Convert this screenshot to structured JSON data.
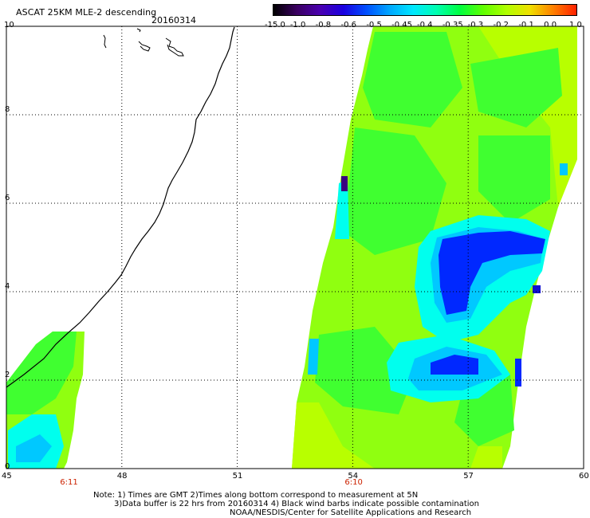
{
  "header": {
    "title": "ASCAT 25KM MLE-2 descending",
    "date": "20160314"
  },
  "colorbar": {
    "labels": [
      "-15.0",
      "-1.0",
      "-0.8",
      "-0.6",
      "-0.5",
      "-0.45",
      "-0.4",
      "-0.35",
      "-0.3",
      "-0.2",
      "-0.1",
      "0.0",
      "1.0"
    ],
    "colors": [
      "#000000",
      "#3a0060",
      "#4a00b0",
      "#1a00e0",
      "#0050ff",
      "#00a8ff",
      "#00e8ff",
      "#00ffb0",
      "#00ff40",
      "#60ff00",
      "#b0ff00",
      "#f0e000",
      "#ff8000",
      "#ff2000"
    ]
  },
  "axes": {
    "x_ticks": [
      "45",
      "48",
      "51",
      "54",
      "57",
      "60"
    ],
    "y_ticks": [
      "0",
      "2",
      "4",
      "6",
      "8",
      "10"
    ],
    "x_range": [
      45,
      60
    ],
    "y_range": [
      0,
      10
    ]
  },
  "pass_times": [
    {
      "label": "6:11",
      "lon": 46.6
    },
    {
      "label": "6:10",
      "lon": 54.0
    }
  ],
  "notes": {
    "line1": "Note: 1) Times are GMT 2)Times along bottom correspond to measurement at 5N",
    "line2": "3)Data buffer is 22 hrs from 20160314 4) Black wind barbs indicate possible contamination",
    "line3": "NOAA/NESDIS/Center for Satellite Applications and Research"
  },
  "map_legend_colors": {
    "green": "#40ff30",
    "lightgreen": "#90ff10",
    "yellowgreen": "#b8ff00",
    "cyan": "#00ffee",
    "lightblue": "#00c8ff",
    "blue": "#0028ff",
    "darkblue": "#1010d0",
    "purple": "#3a0080"
  }
}
